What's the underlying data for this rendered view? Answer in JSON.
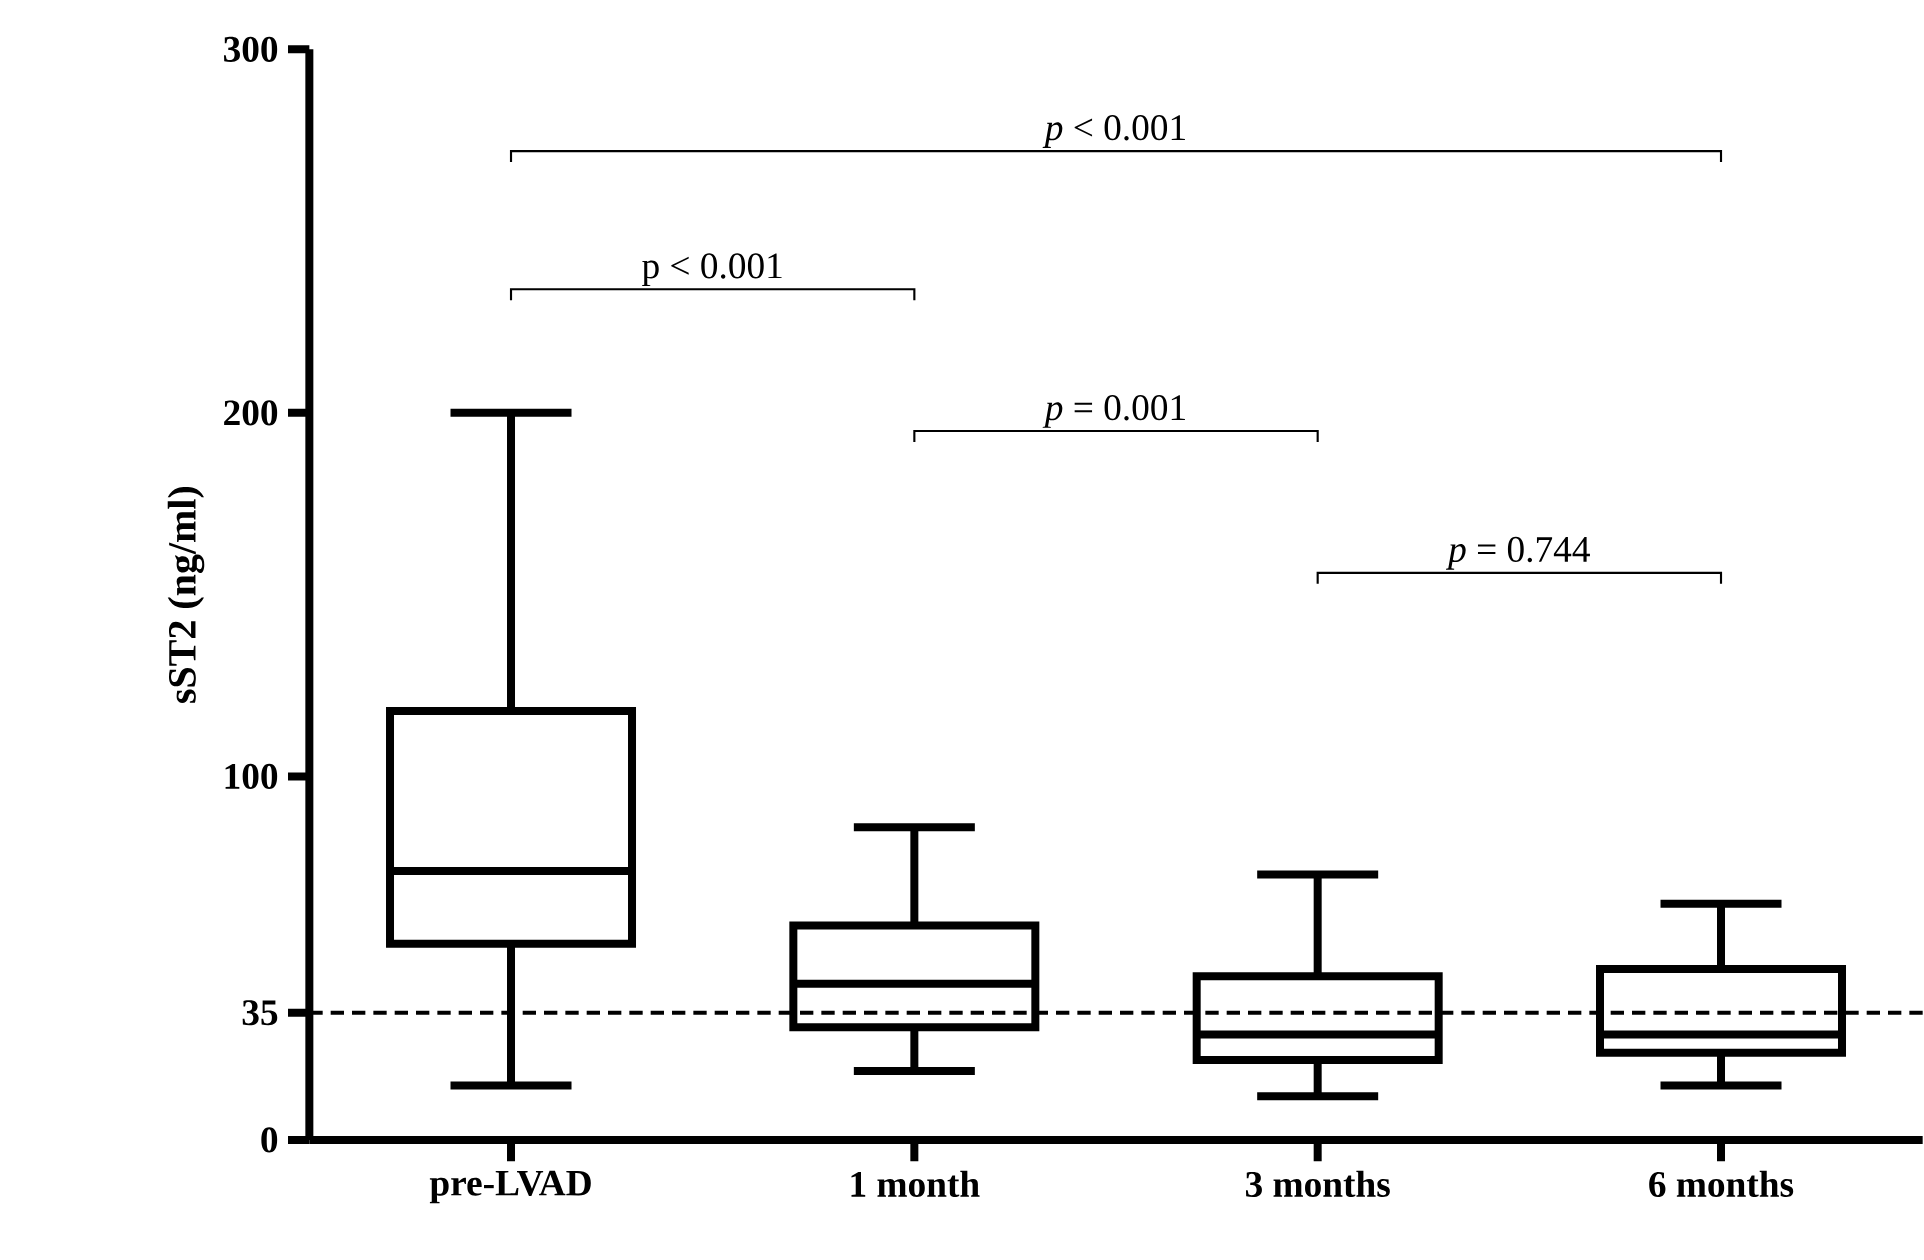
{
  "chart_data": {
    "type": "box",
    "ylabel": "sST2 (ng/ml)",
    "categories": [
      "pre-LVAD",
      "1 month",
      "3 months",
      "6 months"
    ],
    "boxes": [
      {
        "low": 15,
        "q1": 54,
        "median": 74,
        "q3": 118,
        "high": 200
      },
      {
        "low": 19,
        "q1": 31,
        "median": 43,
        "q3": 59,
        "high": 86
      },
      {
        "low": 12,
        "q1": 22,
        "median": 29,
        "q3": 45,
        "high": 73
      },
      {
        "low": 15,
        "q1": 24,
        "median": 29,
        "q3": 47,
        "high": 65
      }
    ],
    "color": "#000000",
    "ylim": [
      0,
      300
    ],
    "yticks": [
      0,
      35,
      100,
      200,
      300
    ],
    "ref_lines": [
      {
        "axis": "y",
        "value": 35,
        "line_style": "dashed",
        "color": "#000000"
      }
    ],
    "annotations": [
      "*p* < 0.001",
      "p < 0.001",
      "*p* = 0.001",
      "*p* = 0.744"
    ],
    "line_style": "solid"
  }
}
